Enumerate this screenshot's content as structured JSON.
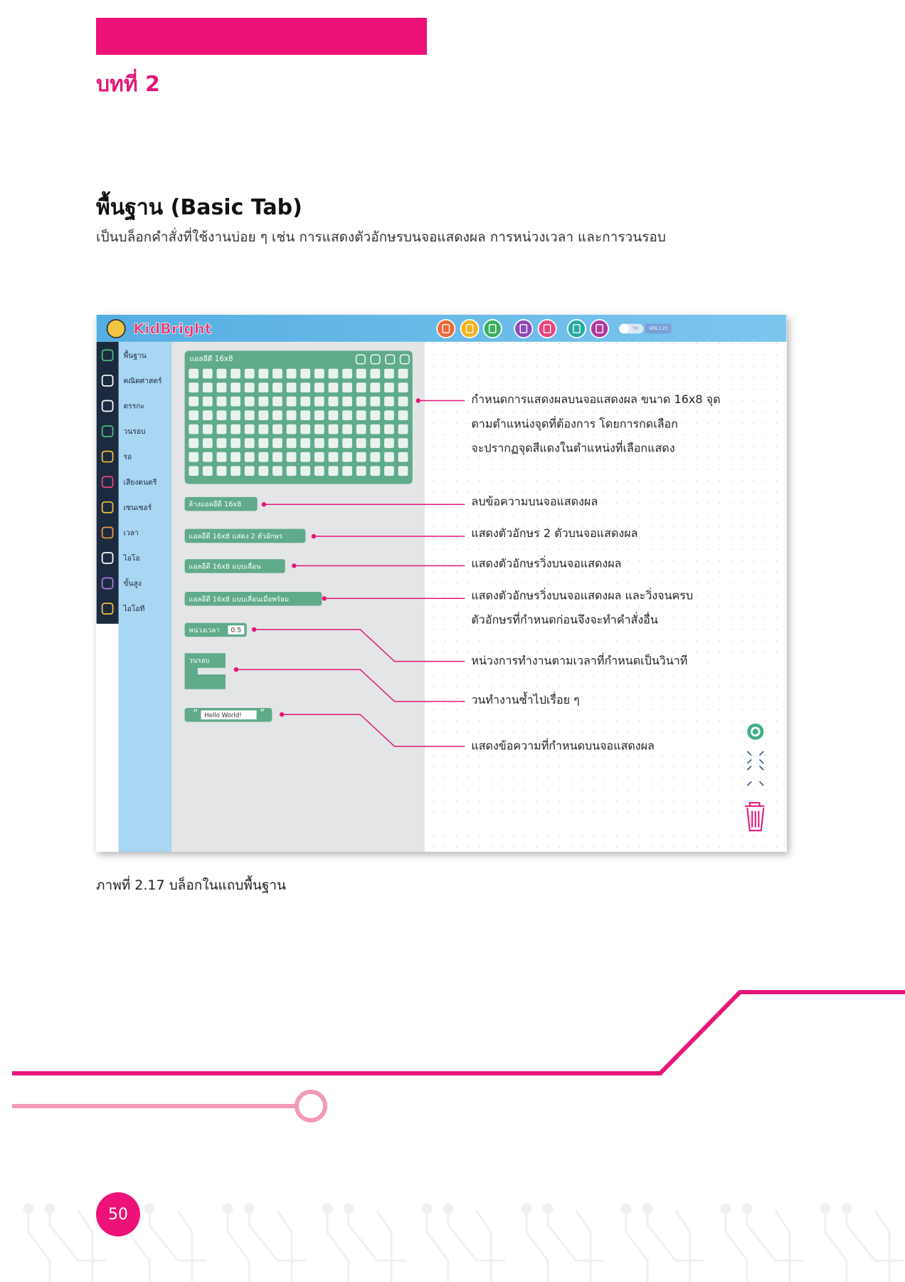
{
  "header": {
    "chapter": "บทที่ 2"
  },
  "section": {
    "title": "พื้นฐาน (Basic Tab)",
    "description": "เป็นบล็อกคำสั่งที่ใช้งานบ่อย ๆ เช่น การแสดงตัวอักษรบนจอแสดงผล การหน่วงเวลา และการวนรอบ"
  },
  "screenshot": {
    "logo": "KidBright",
    "language": "TH",
    "version": "VER.1.23",
    "sidebar": [
      "พื้นฐาน",
      "คณิตศาสตร์",
      "ตรรกะ",
      "วนรอบ",
      "รอ",
      "เสียงดนตรี",
      "เซนเซอร์",
      "เวลา",
      "ไอโอ",
      "ขั้นสูง",
      "ไอโอที"
    ],
    "blocks": [
      "แอลอีดี 16x8",
      "ล้างแอลอีดี 16x8",
      "แอลอีดี 16x8 แสดง 2 ตัวอักษร",
      "แอลอีดี 16x8 แบบเลื่อน",
      "แอลอีดี 16x8 แบบเลื่อนเมื่อพร้อม",
      "หน่วงเวลา",
      "วนรอบ"
    ],
    "delay_value": 0.5,
    "text_block": {
      "quote_open": "“",
      "text": "Hello World!",
      "quote_close": "”"
    },
    "annotations": [
      [
        "กำหนดการแสดงผลบนจอแสดงผล ขนาด 16x8 จุด",
        "ตามตำแหน่งจุดที่ต้องการ โดยการกดเลือก",
        "จะปรากฏจุดสีแดงในตำแหน่งที่เลือกแสดง"
      ],
      [
        "ลบข้อความบนจอแสดงผล"
      ],
      [
        "แสดงตัวอักษร 2 ตัวบนจอแสดงผล"
      ],
      [
        "แสดงตัวอักษรวิ่งบนจอแสดงผล"
      ],
      [
        "แสดงตัวอักษรวิ่งบนจอแสดงผล และวิ่งจนครบ",
        "ตัวอักษรที่กำหนดก่อนจึงจะทำคำสั่งอื่น"
      ],
      [
        "หน่วงการทำงานตามเวลาที่กำหนดเป็นวินาที"
      ],
      [
        "วนทำงานซ้ำไปเรื่อย ๆ"
      ],
      [
        "แสดงข้อความที่กำหนดบนจอแสดงผล"
      ]
    ]
  },
  "caption": "ภาพที่ 2.17 บล็อกในแถบพื้นฐาน",
  "page_number": 50
}
